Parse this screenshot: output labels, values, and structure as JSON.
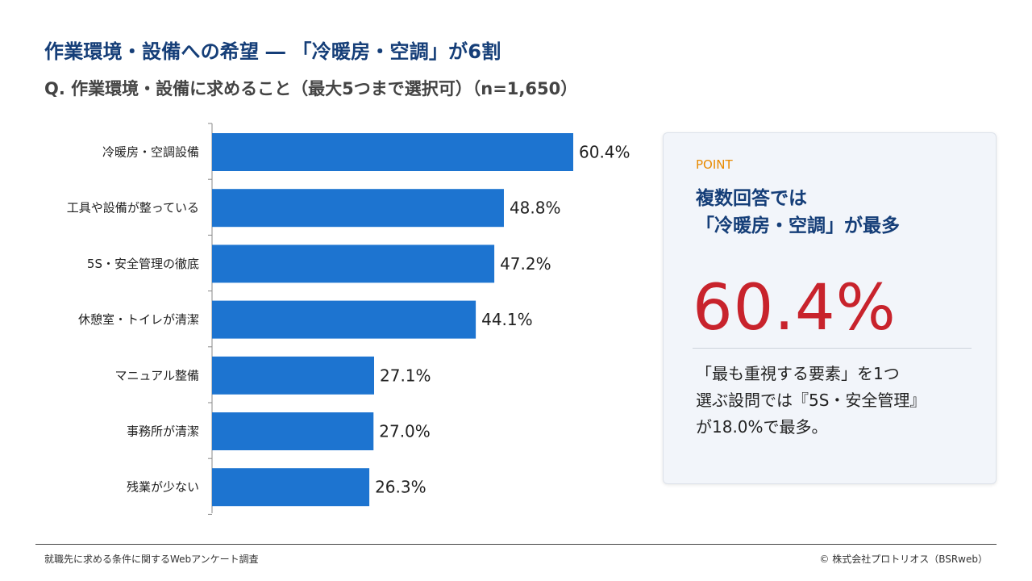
{
  "header": {
    "title": "作業環境・設備への希望 ― 「冷暖房・空調」が6割",
    "subtitle": "Q. 作業環境・設備に求めること（最大5つまで選択可）（n=1,650）"
  },
  "chart_data": {
    "type": "bar",
    "orientation": "horizontal",
    "categories": [
      "冷暖房・空調設備",
      "工具や設備が整っている",
      "5S・安全管理の徹底",
      "休憩室・トイレが清潔",
      "マニュアル整備",
      "事務所が清潔",
      "残業が少ない"
    ],
    "values": [
      60.4,
      48.8,
      47.2,
      44.1,
      27.1,
      27.0,
      26.3
    ],
    "value_labels": [
      "60.4%",
      "48.8%",
      "47.2%",
      "44.1%",
      "27.1%",
      "27.0%",
      "26.3%"
    ],
    "xlim": [
      0,
      70
    ],
    "bar_color": "#1d74d0",
    "grid": false
  },
  "point": {
    "label": "POINT",
    "heading_line1": "複数回答では",
    "heading_line2": "「冷暖房・空調」が最多",
    "big_value": "60.4%",
    "note_line1": "「最も重視する要素」を1つ",
    "note_line2": "選ぶ設問では『5S・安全管理』",
    "note_line3": "が18.0%で最多。"
  },
  "footer": {
    "source": "就職先に求める条件に関するWebアンケート調査",
    "copyright": "©  株式会社プロトリオス（BSRweb）"
  },
  "colors": {
    "title": "#153e78",
    "accent_orange": "#e88a00",
    "highlight_red": "#c8232c",
    "bar": "#1d74d0"
  }
}
